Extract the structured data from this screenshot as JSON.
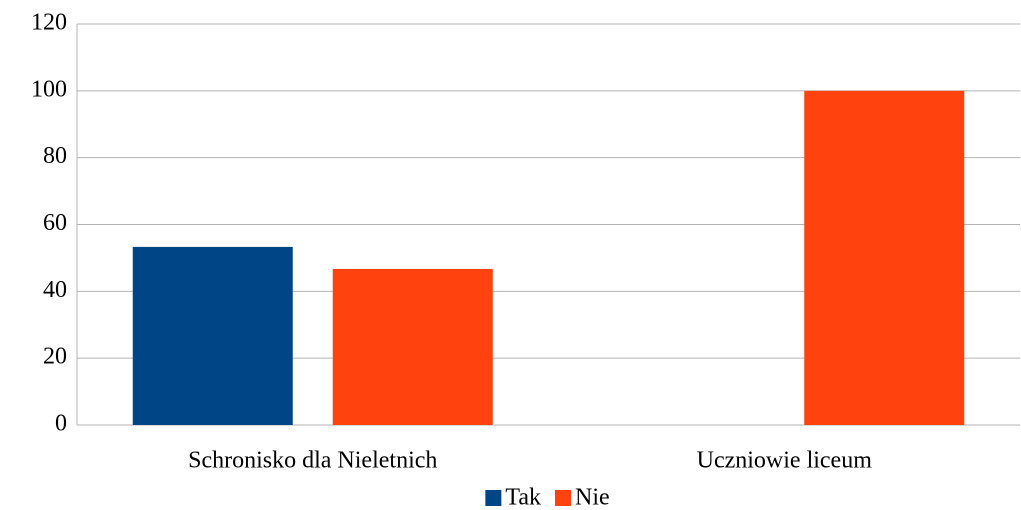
{
  "chart_data": {
    "type": "bar",
    "categories": [
      "Schronisko dla Nieletnich",
      "Uczniowie liceum"
    ],
    "series": [
      {
        "name": "Tak",
        "color": "#004586",
        "values": [
          53.3,
          0
        ]
      },
      {
        "name": "Nie",
        "color": "#ff420e",
        "values": [
          46.7,
          100
        ]
      }
    ],
    "ylim": [
      0,
      120
    ],
    "yticks": [
      0,
      20,
      40,
      60,
      80,
      100,
      120
    ],
    "grid": true,
    "legend": "bottom"
  }
}
